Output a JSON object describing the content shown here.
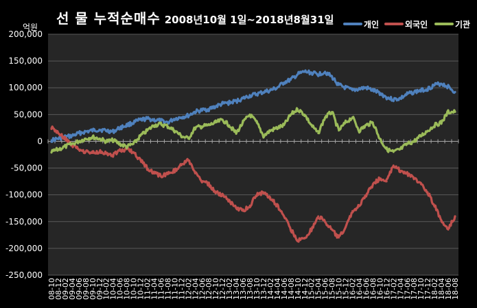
{
  "chart_data": {
    "type": "line",
    "title": "선 물 누적순매수",
    "subtitle": "2008년10월 1일~2018년8월31일",
    "ylabel": "억원",
    "xlabel": "",
    "ylim": [
      -250000,
      200000
    ],
    "yticks": [
      "200,000",
      "150,000",
      "100,000",
      "50,000",
      "0",
      "-50,000",
      "-100,000",
      "-150,000",
      "-200,000",
      "-250,000"
    ],
    "ytick_values": [
      200000,
      150000,
      100000,
      50000,
      0,
      -50000,
      -100000,
      -150000,
      -200000,
      -250000
    ],
    "categories": [
      "08-10",
      "08-12",
      "09-02",
      "09-04",
      "09-06",
      "09-08",
      "09-10",
      "09-12",
      "10-02",
      "10-04",
      "10-06",
      "10-08",
      "10-10",
      "10-12",
      "11-02",
      "11-04",
      "11-06",
      "11-08",
      "11-10",
      "11-12",
      "12-02",
      "12-04",
      "12-06",
      "12-08",
      "12-10",
      "12-12",
      "13-02",
      "13-04",
      "13-06",
      "13-08",
      "13-10",
      "13-12",
      "14-02",
      "14-04",
      "14-06",
      "14-08",
      "14-10",
      "14-12",
      "15-02",
      "15-04",
      "15-06",
      "15-08",
      "15-10",
      "15-12",
      "16-02",
      "16-04",
      "16-06",
      "16-08",
      "16-10",
      "16-12",
      "17-02",
      "17-04",
      "17-06",
      "17-08",
      "17-10",
      "17-12",
      "18-02",
      "18-04",
      "18-06",
      "18-08"
    ],
    "grid": true,
    "legend_position": "top-right",
    "background": "#000000",
    "plot_background": "#262626",
    "series": [
      {
        "name": "개인",
        "color": "#4f81bd",
        "values": [
          2000,
          5000,
          8000,
          10000,
          15000,
          18000,
          20000,
          22000,
          20000,
          18000,
          25000,
          30000,
          35000,
          40000,
          42000,
          40000,
          38000,
          35000,
          42000,
          45000,
          48000,
          55000,
          58000,
          60000,
          65000,
          70000,
          72000,
          75000,
          80000,
          85000,
          88000,
          92000,
          95000,
          100000,
          110000,
          115000,
          125000,
          130000,
          128000,
          125000,
          130000,
          120000,
          105000,
          100000,
          95000,
          98000,
          100000,
          95000,
          90000,
          82000,
          78000,
          80000,
          88000,
          92000,
          95000,
          98000,
          105000,
          108000,
          102000,
          92000
        ]
      },
      {
        "name": "외국인",
        "color": "#c0504d",
        "values": [
          25000,
          15000,
          5000,
          -8000,
          -15000,
          -20000,
          -22000,
          -20000,
          -22000,
          -25000,
          -18000,
          -15000,
          -20000,
          -35000,
          -50000,
          -60000,
          -65000,
          -60000,
          -55000,
          -45000,
          -35000,
          -60000,
          -75000,
          -80000,
          -95000,
          -100000,
          -110000,
          -125000,
          -130000,
          -120000,
          -100000,
          -95000,
          -105000,
          -120000,
          -140000,
          -165000,
          -185000,
          -180000,
          -165000,
          -140000,
          -150000,
          -165000,
          -180000,
          -160000,
          -130000,
          -120000,
          -100000,
          -80000,
          -70000,
          -75000,
          -45000,
          -55000,
          -60000,
          -70000,
          -80000,
          -95000,
          -120000,
          -150000,
          -165000,
          -140000
        ]
      },
      {
        "name": "기관",
        "color": "#9bbb59",
        "values": [
          -20000,
          -15000,
          -10000,
          -5000,
          0,
          5000,
          8000,
          5000,
          0,
          2000,
          -5000,
          -10000,
          -5000,
          10000,
          20000,
          30000,
          32000,
          28000,
          20000,
          10000,
          5000,
          25000,
          28000,
          30000,
          35000,
          40000,
          30000,
          15000,
          35000,
          50000,
          35000,
          10000,
          20000,
          25000,
          30000,
          50000,
          60000,
          50000,
          30000,
          15000,
          45000,
          55000,
          20000,
          35000,
          45000,
          20000,
          30000,
          35000,
          5000,
          -15000,
          -20000,
          -15000,
          -5000,
          0,
          10000,
          20000,
          30000,
          35000,
          55000,
          55000
        ]
      }
    ]
  }
}
